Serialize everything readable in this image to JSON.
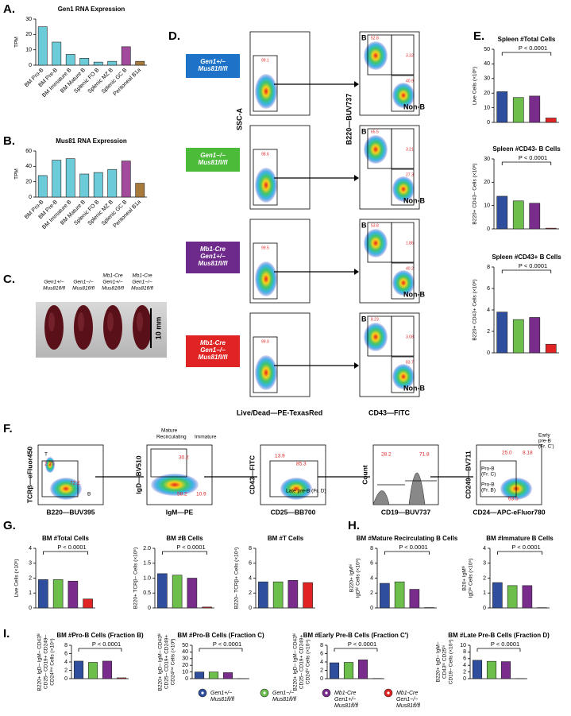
{
  "figure": {
    "letters": [
      "A.",
      "B.",
      "C.",
      "D.",
      "E.",
      "F.",
      "G.",
      "H.",
      "I."
    ],
    "group_colors": [
      "#2f4f9e",
      "#6cbf4a",
      "#7a2c8c",
      "#e02424"
    ],
    "bar_charts": [
      {
        "type": "bar",
        "title": "Gen1 RNA Expression",
        "ylabel": [
          "TPM"
        ],
        "categories": [
          "BM Pro-B",
          "BM Pre-B",
          "BM Immature B",
          "BM Mature B",
          "Splenic FO B",
          "Splenic MZ B",
          "Splenic GC B",
          "Peritoneal B1a"
        ],
        "values": [
          25,
          15,
          7,
          4.5,
          2,
          2.5,
          12,
          2.5
        ],
        "colors": [
          "#6ccbd8",
          "#6ccbd8",
          "#6ccbd8",
          "#6ccbd8",
          "#6ccbd8",
          "#6ccbd8",
          "#a24a9c",
          "#a77a3c"
        ],
        "ylim": [
          0,
          30
        ],
        "yticks": [
          0,
          10,
          20,
          30
        ]
      },
      {
        "type": "bar",
        "title": "Mus81 RNA Expression",
        "ylabel": [
          "TPM"
        ],
        "categories": [
          "BM Pro-B",
          "BM Pre-B",
          "BM Immature B",
          "BM Mature B",
          "Splenic FO B",
          "Splenic MZ B",
          "Splenic GC B",
          "Peritoneal B1a"
        ],
        "values": [
          28,
          48,
          50,
          30,
          32,
          36,
          47,
          18
        ],
        "colors": [
          "#6ccbd8",
          "#6ccbd8",
          "#6ccbd8",
          "#6ccbd8",
          "#6ccbd8",
          "#6ccbd8",
          "#a24a9c",
          "#a77a3c"
        ],
        "ylim": [
          0,
          60
        ],
        "yticks": [
          0,
          20,
          40,
          60
        ]
      },
      {
        "type": "bar",
        "title": "Spleen #Total Cells",
        "ylabel": [
          "Live Cells (×10⁶)"
        ],
        "values": [
          21,
          17,
          18,
          3
        ],
        "ylim": [
          0,
          50
        ],
        "yticks": [
          0,
          10,
          20,
          30,
          40,
          50
        ],
        "annotation": "P < 0.0001"
      },
      {
        "type": "bar",
        "title": "Spleen #CD43- B Cells",
        "ylabel": [
          "B220+ CD43– Cells (×10⁶)"
        ],
        "values": [
          14,
          12,
          11,
          0.3
        ],
        "ylim": [
          0,
          30
        ],
        "yticks": [
          0,
          10,
          20,
          30
        ],
        "annotation": "P < 0.0001"
      },
      {
        "type": "bar",
        "title": "Spleen #CD43+ B Cells",
        "ylabel": [
          "B220+ CD43+ Cells (×10⁶)"
        ],
        "values": [
          3.8,
          3.1,
          3.3,
          0.8
        ],
        "ylim": [
          0,
          8
        ],
        "yticks": [
          0,
          2,
          4,
          6,
          8
        ],
        "annotation": "P < 0.0001"
      },
      {
        "type": "bar",
        "title": "BM #Total Cells",
        "ylabel": [
          "Live Cells (×10⁶)"
        ],
        "values": [
          1.9,
          1.9,
          1.8,
          0.6
        ],
        "ylim": [
          0,
          4
        ],
        "yticks": [
          0,
          1,
          2,
          3,
          4
        ],
        "annotation": "P < 0.0001"
      },
      {
        "type": "bar",
        "title": "BM #B Cells",
        "ylabel": [
          "B220+ TCRβ– Cells (×10⁶)"
        ],
        "values": [
          1.15,
          1.1,
          1.0,
          0.03
        ],
        "ylim": [
          0,
          2
        ],
        "yticks": [
          0,
          0.5,
          {
            "value": 1,
            "label": "1.0"
          },
          1.5,
          {
            "value": 2,
            "label": "2.0"
          }
        ],
        "annotation": "P < 0.0001"
      },
      {
        "type": "bar",
        "title": "BM #T Cells",
        "ylabel": [
          "B220– TCRβ+ Cells (×10⁴)"
        ],
        "values": [
          3.5,
          3.5,
          3.7,
          3.4
        ],
        "ylim": [
          0,
          8
        ],
        "yticks": [
          0,
          2,
          4,
          6,
          8
        ]
      },
      {
        "type": "bar",
        "title": "BM #Mature Recirculating B Cells",
        "ylabel": [
          "B220+ IgMʰⁱ",
          "IgDʰⁱ Cells (×10⁵)"
        ],
        "values": [
          3.3,
          3.5,
          2.5,
          0.05
        ],
        "ylim": [
          0,
          8
        ],
        "yticks": [
          0,
          2,
          4,
          6,
          8
        ],
        "annotation": "P < 0.0001"
      },
      {
        "type": "bar",
        "title": "BM #Immature B Cells",
        "ylabel": [
          "B20+ IgMʰⁱ",
          "IgDˡᵒ Cells (×10⁵)"
        ],
        "values": [
          1.7,
          1.5,
          1.5,
          0.02
        ],
        "ylim": [
          0,
          4
        ],
        "yticks": [
          0,
          1,
          2,
          3,
          4
        ],
        "annotation": "P < 0.0001"
      },
      {
        "type": "bar",
        "title": "BM #Pro-B Cells (Fraction B)",
        "ylabel": [
          "B220+ IgD– IgM– CD43ʰⁱ",
          "CD25– CD19+ CD249–",
          "CD24ˡᵒʷ Cells (×10⁴)"
        ],
        "values": [
          4.2,
          3.9,
          4.2,
          0.2
        ],
        "ylim": [
          0,
          8
        ],
        "yticks": [
          0,
          2,
          4,
          6,
          8
        ],
        "annotation": "P < 0.0001"
      },
      {
        "type": "bar",
        "title": "BM #Pro-B Cells (Fraction C)",
        "ylabel": [
          "B220+ IgD– IgM– CD43ʰⁱ",
          "CD25– CD19+ CD249+",
          "CD24ˡᵒʷ Cells (×10³)"
        ],
        "values": [
          10,
          10,
          9,
          0.2
        ],
        "ylim": [
          0,
          50
        ],
        "yticks": [
          0,
          10,
          20,
          30,
          40,
          50
        ],
        "annotation": "P < 0.0001"
      },
      {
        "type": "bar",
        "title": "BM #Early Pre-B Cells (Fraction C')",
        "ylabel": [
          "B220+ IgD– IgM– CD43ʰⁱ",
          "CD25– CD19+ CD249+",
          "CD24ʰⁱ Cells (×10⁴)"
        ],
        "values": [
          3.8,
          3.9,
          4.5,
          0.05
        ],
        "ylim": [
          0,
          8
        ],
        "yticks": [
          0,
          2,
          4,
          6,
          8
        ],
        "annotation": "P < 0.0001"
      },
      {
        "type": "bar",
        "title": "BM #Late Pre-B Cells (Fraction D)",
        "ylabel": [
          "B220+ IgD– IgM–",
          "CD43ˡᵒ CD25ʰⁱ",
          "CD19– Cells (×10⁴)"
        ],
        "values": [
          5.5,
          5.2,
          5.1,
          0.05
        ],
        "ylim": [
          0,
          10
        ],
        "yticks": [
          0,
          2,
          4,
          6,
          8,
          10
        ],
        "annotation": "P < 0.0001"
      }
    ],
    "spleen": {
      "labels": [
        [
          "Gen1+/−",
          "Mus81fl/fl"
        ],
        [
          "Gen1−/−",
          "Mus81fl/fl"
        ],
        [
          "Mb1-Cre",
          "Gen1+/−",
          "Mus81fl/fl"
        ],
        [
          "Mb1-Cre",
          "Gen1−/−",
          "Mus81fl/fl"
        ]
      ],
      "scale": "10 mm"
    },
    "flow_d": {
      "genotypes": [
        [
          "Gen1+/−",
          "Mus81fl/fl"
        ],
        [
          "Gen1−/−",
          "Mus81fl/fl"
        ],
        [
          "Mb1-Cre",
          "Gen1+/−",
          "Mus81fl/fl"
        ],
        [
          "Mb1-Cre",
          "Gen1−/−",
          "Mus81fl/fl"
        ]
      ],
      "y1": "SSC-A",
      "x1": "Live/Dead—PE-TexasRed",
      "y2": "B220—BUV737",
      "x2": "CD43—FITC",
      "b_label": "B",
      "nonb_label": "Non-B",
      "gates": [
        {
          "live": "99.1",
          "b": "52.8",
          "mid": "3.32",
          "nonb": "40.9"
        },
        {
          "live": "98.6",
          "b": "65.5",
          "mid": "3.21",
          "nonb": "27.3"
        },
        {
          "live": "99.5",
          "b": "53.8",
          "mid": "1.86",
          "nonb": "40.2"
        },
        {
          "live": "99.0",
          "b": "8.23",
          "mid": "3.08",
          "nonb": "83.7"
        }
      ]
    },
    "flow_f": [
      {
        "ylabel": "TCRβ—eFluor450",
        "xlabel": "B220—BUV395",
        "labels": [
          {
            "text": "T",
            "color": "#000"
          },
          {
            "text": "2.75",
            "color": "#e02424"
          },
          {
            "text": "72.2",
            "color": "#e02424"
          },
          {
            "text": "B",
            "color": "#000"
          }
        ]
      },
      {
        "ylabel": "IgD—BV510",
        "xlabel": "IgM—PE",
        "labels": [
          {
            "text": "Mature",
            "color": "#000"
          },
          {
            "text": "Recirculating",
            "color": "#000"
          },
          {
            "text": "Immature",
            "color": "#000"
          },
          {
            "text": "30.2",
            "color": "#e02424"
          },
          {
            "text": "58.2",
            "color": "#e02424"
          },
          {
            "text": "10.9",
            "color": "#e02424"
          }
        ]
      },
      {
        "ylabel": "CD43—FITC",
        "xlabel": "CD25—BB700",
        "labels": [
          {
            "text": "13.9",
            "color": "#e02424"
          },
          {
            "text": "85.3",
            "color": "#e02424"
          },
          {
            "text": "Late pre-B (Fr. D)",
            "color": "#000"
          }
        ]
      },
      {
        "ylabel": "Count",
        "xlabel": "CD19—BUV737",
        "labels": [
          {
            "text": "28.2",
            "color": "#e02424"
          },
          {
            "text": "71.8",
            "color": "#e02424"
          }
        ]
      },
      {
        "ylabel": "CD249—BV711",
        "xlabel": "CD24—APC-eFluor780",
        "labels": [
          {
            "text": "25.0",
            "color": "#e02424"
          },
          {
            "text": "8.18",
            "color": "#e02424"
          },
          {
            "text": "Early",
            "color": "#000"
          },
          {
            "text": "pre-B",
            "color": "#000"
          },
          {
            "text": "(Fr. C')",
            "color": "#000"
          },
          {
            "text": "Pro-B",
            "color": "#000"
          },
          {
            "text": "(Fr. C)",
            "color": "#000"
          },
          {
            "text": "Pro-B",
            "color": "#000"
          },
          {
            "text": "(Fr. B)",
            "color": "#000"
          },
          {
            "text": "63.5",
            "color": "#e02424"
          }
        ]
      }
    ],
    "legend": [
      [
        "Gen1+/−",
        "Mus81fl/fl"
      ],
      [
        "Gen1−/−",
        "Mus81fl/fl"
      ],
      [
        "Mb1-Cre",
        "Gen1+/−",
        "Mus81fl/fl"
      ],
      [
        "Mb1-Cre",
        "Gen1−/−",
        "Mus81fl/fl"
      ]
    ]
  }
}
